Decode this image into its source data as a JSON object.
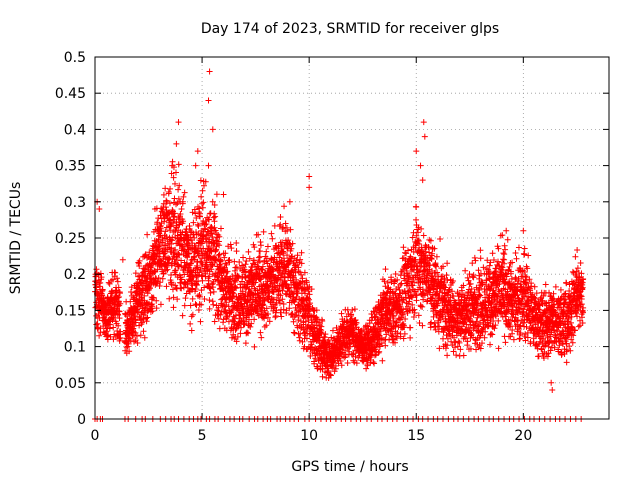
{
  "chart_data": {
    "type": "scatter",
    "title": "Day 174 of 2023, SRMTID for receiver glps",
    "xlabel": "GPS time / hours",
    "ylabel": "SRMTID / TECUs",
    "xlim": [
      0,
      24
    ],
    "ylim": [
      0,
      0.5
    ],
    "xticks": [
      0,
      5,
      10,
      15,
      20
    ],
    "yticks": [
      0,
      0.05,
      0.1,
      0.15,
      0.2,
      0.25,
      0.3,
      0.35,
      0.4,
      0.45,
      0.5
    ],
    "ytick_labels": [
      "0",
      "0.05",
      "0.1",
      "0.15",
      "0.2",
      "0.25",
      "0.3",
      "0.35",
      "0.4",
      "0.45",
      "0.5"
    ],
    "grid": true,
    "marker": "+",
    "color": "#ff0000",
    "trend": [
      [
        0.0,
        0.17,
        0.04
      ],
      [
        0.5,
        0.15,
        0.03
      ],
      [
        1.0,
        0.16,
        0.04
      ],
      [
        1.5,
        0.12,
        0.03
      ],
      [
        2.0,
        0.16,
        0.04
      ],
      [
        2.5,
        0.19,
        0.05
      ],
      [
        3.0,
        0.23,
        0.05
      ],
      [
        3.5,
        0.26,
        0.07
      ],
      [
        4.0,
        0.25,
        0.07
      ],
      [
        4.5,
        0.2,
        0.06
      ],
      [
        5.0,
        0.24,
        0.07
      ],
      [
        5.5,
        0.23,
        0.07
      ],
      [
        6.0,
        0.18,
        0.05
      ],
      [
        6.5,
        0.17,
        0.05
      ],
      [
        7.0,
        0.17,
        0.05
      ],
      [
        7.5,
        0.18,
        0.05
      ],
      [
        8.0,
        0.18,
        0.05
      ],
      [
        8.5,
        0.2,
        0.05
      ],
      [
        9.0,
        0.21,
        0.06
      ],
      [
        9.5,
        0.17,
        0.05
      ],
      [
        10.0,
        0.14,
        0.05
      ],
      [
        10.5,
        0.1,
        0.03
      ],
      [
        11.0,
        0.08,
        0.02
      ],
      [
        11.5,
        0.11,
        0.03
      ],
      [
        12.0,
        0.12,
        0.03
      ],
      [
        12.5,
        0.1,
        0.02
      ],
      [
        13.0,
        0.11,
        0.03
      ],
      [
        13.5,
        0.15,
        0.04
      ],
      [
        14.0,
        0.15,
        0.04
      ],
      [
        14.5,
        0.17,
        0.05
      ],
      [
        15.0,
        0.22,
        0.06
      ],
      [
        15.5,
        0.2,
        0.05
      ],
      [
        16.0,
        0.17,
        0.05
      ],
      [
        16.5,
        0.15,
        0.05
      ],
      [
        17.0,
        0.14,
        0.04
      ],
      [
        17.5,
        0.15,
        0.05
      ],
      [
        18.0,
        0.16,
        0.05
      ],
      [
        18.5,
        0.17,
        0.05
      ],
      [
        19.0,
        0.18,
        0.05
      ],
      [
        19.5,
        0.16,
        0.05
      ],
      [
        20.0,
        0.17,
        0.05
      ],
      [
        20.5,
        0.14,
        0.04
      ],
      [
        21.0,
        0.13,
        0.04
      ],
      [
        21.5,
        0.14,
        0.04
      ],
      [
        22.0,
        0.13,
        0.04
      ],
      [
        22.5,
        0.17,
        0.04
      ],
      [
        22.8,
        0.17,
        0.04
      ]
    ],
    "peaks": [
      [
        0.1,
        0.3
      ],
      [
        0.2,
        0.29
      ],
      [
        3.9,
        0.41
      ],
      [
        3.8,
        0.38
      ],
      [
        3.6,
        0.35
      ],
      [
        4.8,
        0.37
      ],
      [
        4.7,
        0.35
      ],
      [
        5.35,
        0.48
      ],
      [
        5.3,
        0.44
      ],
      [
        5.5,
        0.4
      ],
      [
        5.3,
        0.35
      ],
      [
        6.0,
        0.31
      ],
      [
        9.1,
        0.3
      ],
      [
        10.0,
        0.335
      ],
      [
        10.0,
        0.32
      ],
      [
        15.0,
        0.37
      ],
      [
        15.2,
        0.35
      ],
      [
        15.35,
        0.41
      ],
      [
        15.4,
        0.39
      ],
      [
        15.3,
        0.33
      ],
      [
        19.2,
        0.26
      ],
      [
        20.0,
        0.26
      ],
      [
        21.3,
        0.05
      ],
      [
        21.35,
        0.04
      ],
      [
        1.3,
        0.22
      ],
      [
        2.8,
        0.29
      ],
      [
        8.9,
        0.27
      ]
    ],
    "zero_times": [
      0.0,
      0.1,
      0.25,
      0.35,
      1.4,
      1.55,
      1.9,
      2.2,
      2.35,
      2.7,
      3.05,
      3.3,
      3.55,
      3.7,
      3.9,
      4.15,
      4.4,
      4.6,
      4.8,
      4.95,
      5.2,
      5.35,
      5.6,
      5.75,
      6.05,
      6.3,
      6.5,
      6.75,
      6.9,
      7.2,
      7.45,
      7.6,
      7.85,
      8.05,
      8.2,
      8.5,
      8.65,
      8.9,
      9.1,
      9.3,
      9.5,
      9.8,
      10.0,
      10.3,
      10.55,
      10.8,
      11.0,
      11.25,
      11.5,
      11.7,
      11.95,
      12.2,
      12.4,
      12.7,
      12.9,
      13.2,
      13.4,
      13.65,
      13.9,
      14.1,
      14.4,
      14.6,
      14.85,
      15.1,
      15.3,
      15.55,
      15.8,
      16.0,
      16.25,
      16.5,
      16.75,
      16.95,
      17.2,
      17.45,
      17.7,
      17.9,
      18.15,
      18.4,
      18.6,
      18.85,
      19.1,
      19.35,
      19.55,
      19.8,
      20.05,
      20.3,
      20.5,
      20.75,
      21.0,
      21.25,
      21.5,
      21.7,
      21.95,
      22.2,
      22.45,
      22.7
    ]
  }
}
